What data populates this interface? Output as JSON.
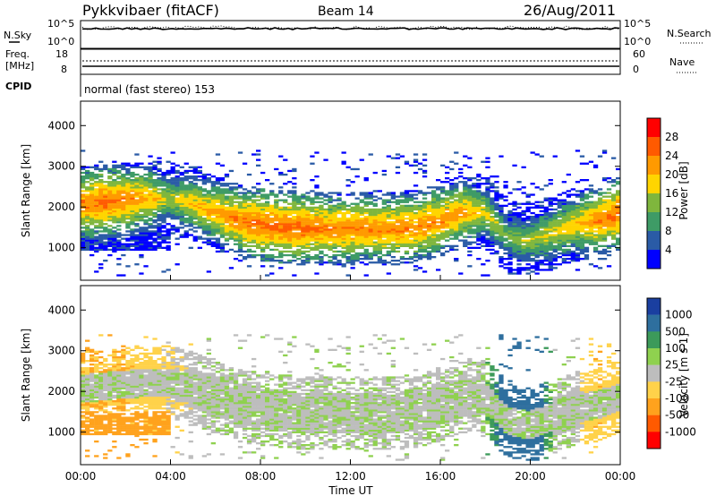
{
  "header": {
    "station": "Pykkvibaer (fitACF)",
    "beam": "Beam 14",
    "date": "26/Aug/2011"
  },
  "strip_labels": {
    "nsky": "N.Sky",
    "freq_line1": "Freq.",
    "freq_line2": "[MHz]",
    "cpid": "CPID",
    "nsearch": "N.Search",
    "nave": "Nave",
    "nsky_ticks": [
      "10^5",
      "10^0"
    ],
    "nsearch_ticks": [
      "10^5",
      "10^0"
    ],
    "freq_ticks": [
      "18",
      "8"
    ],
    "nave_ticks": [
      "60",
      "0"
    ],
    "cpid_text": "normal (fast stereo) 153"
  },
  "chart_data": [
    {
      "type": "heatmap",
      "title": "Power",
      "ylabel": "Slant Range [km]",
      "xlabel": "",
      "ylim": [
        200,
        4600
      ],
      "yticks": [
        "4000",
        "3000",
        "2000",
        "1000"
      ],
      "colorbar": {
        "label": "Power [dB]",
        "ticks": [
          "28",
          "24",
          "20",
          "16",
          "12",
          "8",
          "4"
        ],
        "colors": [
          "#ff0000",
          "#ff5a00",
          "#ff9a00",
          "#ffd500",
          "#7fb63d",
          "#3e9b66",
          "#2a5ba6",
          "#0000ff"
        ]
      },
      "echo_band": {
        "x_hours": [
          0,
          1,
          2,
          3,
          4,
          5,
          6,
          7,
          8,
          9,
          10,
          11,
          12,
          13,
          14,
          15,
          16,
          17,
          18,
          19,
          20,
          21,
          22,
          23,
          24
        ],
        "center_km": [
          2050,
          2100,
          2150,
          2200,
          2200,
          2050,
          1850,
          1650,
          1550,
          1500,
          1450,
          1450,
          1450,
          1450,
          1450,
          1500,
          1650,
          1850,
          1850,
          1250,
          1150,
          1350,
          1550,
          1650,
          1850
        ],
        "peak_power_db": [
          26,
          28,
          26,
          24,
          18,
          22,
          24,
          26,
          28,
          28,
          28,
          26,
          26,
          26,
          26,
          26,
          26,
          24,
          20,
          16,
          18,
          20,
          22,
          26,
          28
        ]
      }
    },
    {
      "type": "heatmap",
      "title": "Velocity",
      "ylabel": "Slant Range [km]",
      "xlabel": "Time UT",
      "ylim": [
        200,
        4600
      ],
      "yticks": [
        "4000",
        "3000",
        "2000",
        "1000"
      ],
      "xticks": [
        "00:00",
        "04:00",
        "08:00",
        "12:00",
        "16:00",
        "20:00",
        "00:00"
      ],
      "colorbar": {
        "label": "Velocity [m s-1]",
        "ticks": [
          "1000",
          "500",
          "100",
          "25",
          "-25",
          "-100",
          "-500",
          "-1000"
        ],
        "colors": [
          "#1a3fa0",
          "#2e6f9e",
          "#3c9a5a",
          "#8fd14f",
          "#bdbdbd",
          "#ffd24a",
          "#ffa21d",
          "#ff5a00",
          "#ff0000"
        ]
      },
      "echo_band": {
        "x_hours": [
          0,
          2,
          4,
          6,
          8,
          10,
          12,
          14,
          16,
          18,
          19,
          20,
          21,
          22,
          23,
          24
        ],
        "velocity_ms": [
          -100,
          -100,
          -25,
          0,
          0,
          0,
          0,
          0,
          0,
          0,
          200,
          300,
          0,
          0,
          -100,
          -50
        ]
      }
    }
  ]
}
